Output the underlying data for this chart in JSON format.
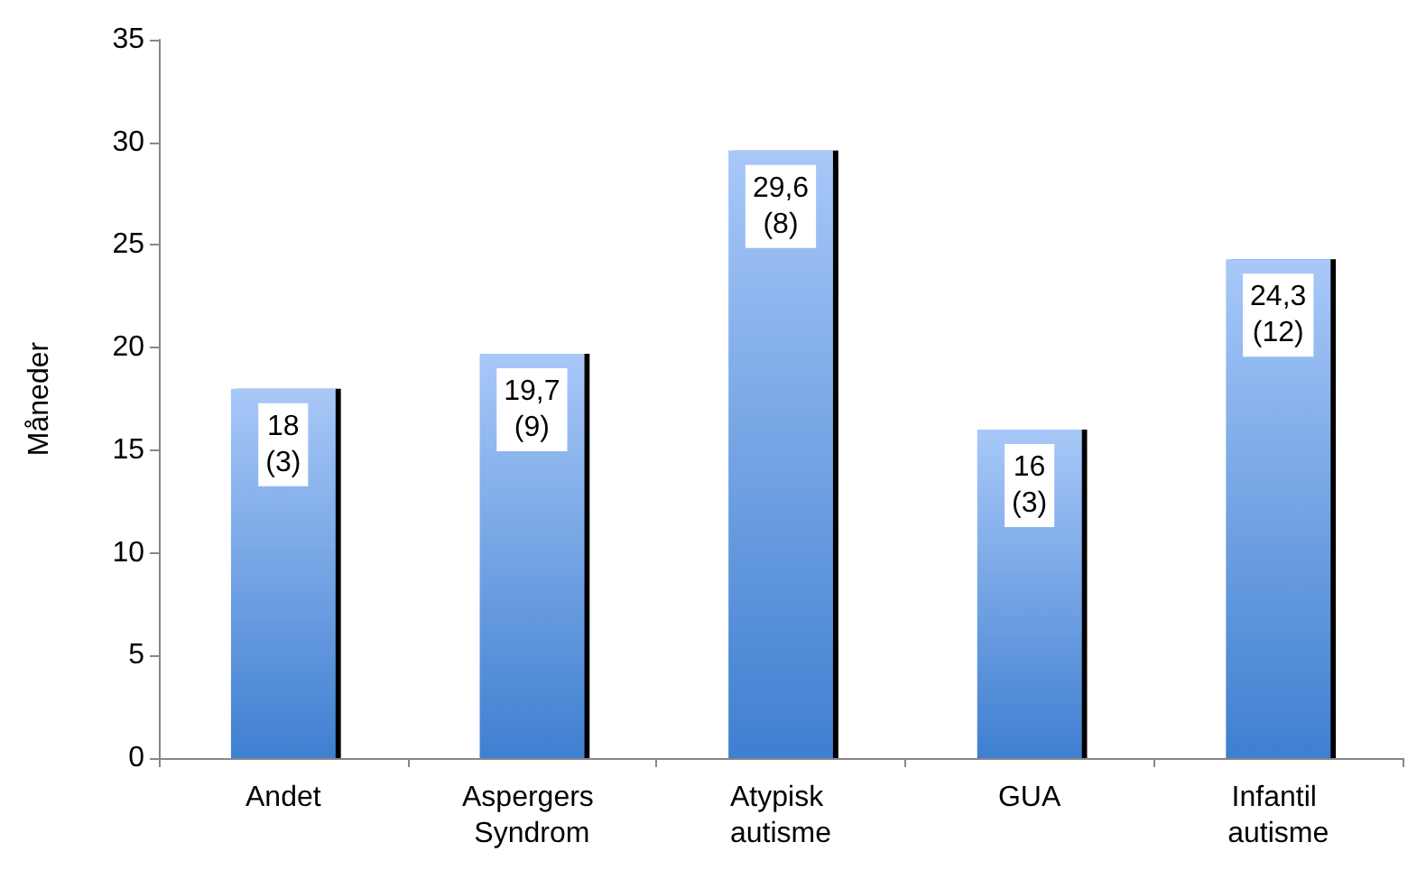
{
  "chart_data": {
    "type": "bar",
    "ylabel": "Måneder",
    "categories": [
      "Andet",
      "Aspergers Syndrom",
      "Atypisk autisme",
      "GUA",
      "Infantil autisme"
    ],
    "values": [
      18,
      19.7,
      29.6,
      16,
      24.3
    ],
    "value_labels": [
      "18\n(3)",
      "19,7\n(9)",
      "29,6\n(8)",
      "16\n(3)",
      "24,3\n(12)"
    ],
    "color": "#3f7fd0",
    "ylim": [
      0,
      35
    ],
    "yticks": [
      0,
      5,
      10,
      15,
      20,
      25,
      30,
      35
    ],
    "grid": false
  }
}
